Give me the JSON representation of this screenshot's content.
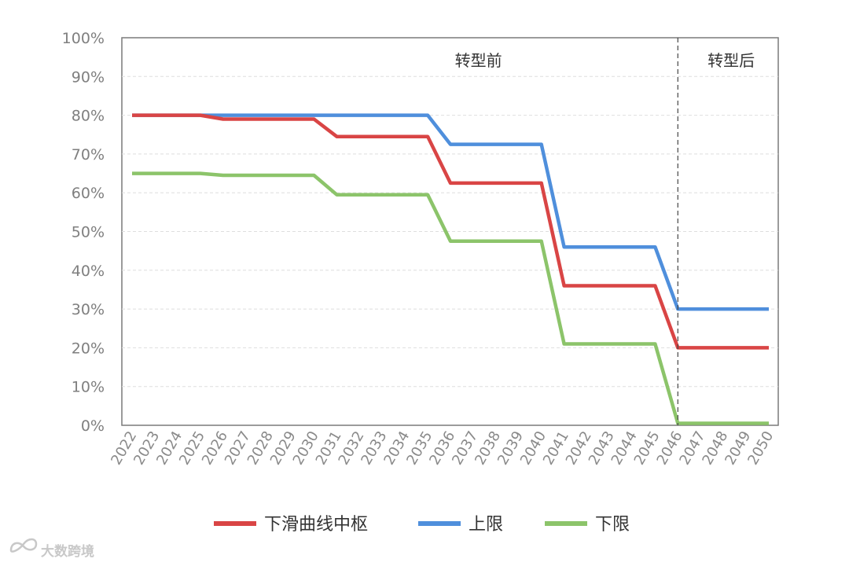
{
  "chart_data": {
    "type": "line",
    "x": [
      "2022",
      "2023",
      "2024",
      "2025",
      "2026",
      "2027",
      "2028",
      "2029",
      "2030",
      "2031",
      "2032",
      "2033",
      "2034",
      "2035",
      "2036",
      "2037",
      "2038",
      "2039",
      "2040",
      "2041",
      "2042",
      "2043",
      "2044",
      "2045",
      "2046",
      "2047",
      "2048",
      "2049",
      "2050"
    ],
    "yticks": [
      "0%",
      "10%",
      "20%",
      "30%",
      "40%",
      "50%",
      "60%",
      "70%",
      "80%",
      "90%",
      "100%"
    ],
    "ylim": [
      0,
      100
    ],
    "grid": true,
    "legend_position": "bottom",
    "region_labels": [
      {
        "text": "转型前"
      },
      {
        "text": "转型后"
      }
    ],
    "divider_x": "2046",
    "series": [
      {
        "name": "下滑曲线中枢",
        "color": "#d94545",
        "values": [
          80,
          80,
          80,
          80,
          79,
          79,
          79,
          79,
          79,
          74.5,
          74.5,
          74.5,
          74.5,
          74.5,
          62.5,
          62.5,
          62.5,
          62.5,
          62.5,
          36,
          36,
          36,
          36,
          36,
          20,
          20,
          20,
          20,
          20
        ]
      },
      {
        "name": "上限",
        "color": "#4f8fdc",
        "values": [
          80,
          80,
          80,
          80,
          80,
          80,
          80,
          80,
          80,
          80,
          80,
          80,
          80,
          80,
          72.5,
          72.5,
          72.5,
          72.5,
          72.5,
          46,
          46,
          46,
          46,
          46,
          30,
          30,
          30,
          30,
          30
        ]
      },
      {
        "name": "下限",
        "color": "#8cc46a",
        "values": [
          65,
          65,
          65,
          65,
          64.5,
          64.5,
          64.5,
          64.5,
          64.5,
          59.5,
          59.5,
          59.5,
          59.5,
          59.5,
          47.5,
          47.5,
          47.5,
          47.5,
          47.5,
          21,
          21,
          21,
          21,
          21,
          0.5,
          0.5,
          0.5,
          0.5,
          0.5
        ]
      }
    ]
  },
  "watermark": {
    "text": "大数跨境",
    "icon": "infinity-logo-icon"
  }
}
